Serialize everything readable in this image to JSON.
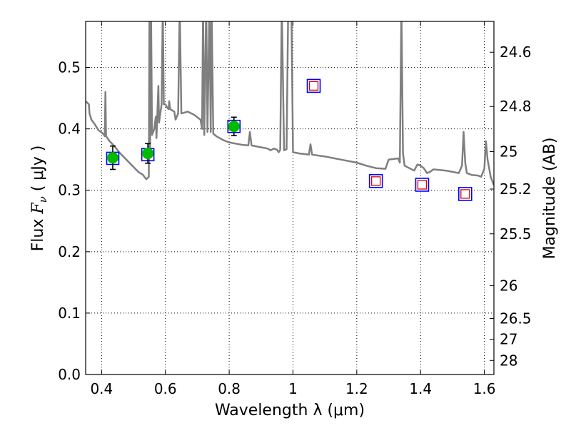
{
  "chart_data": {
    "type": "scatter",
    "xlabel": "Wavelength  λ (μm)",
    "ylabel_text": "Flux  ",
    "ylabel_math": "F",
    "ylabel_sub": "ν",
    "ylabel_units": " ( μJy )",
    "y2label": "Magnitude (AB)",
    "xlim": [
      0.35,
      1.63
    ],
    "ylim": [
      0.0,
      0.575
    ],
    "x_ticks": [
      0.4,
      0.6,
      0.8,
      1.0,
      1.2,
      1.4,
      1.6
    ],
    "x_tick_labels": [
      "0.4",
      "0.6",
      "0.8",
      "1",
      "1.2",
      "1.4",
      "1.6"
    ],
    "y_ticks": [
      0.0,
      0.1,
      0.2,
      0.3,
      0.4,
      0.5
    ],
    "y_tick_labels": [
      "0.0",
      "0.1",
      "0.2",
      "0.3",
      "0.4",
      "0.5"
    ],
    "y2_ticks": [
      {
        "label": "24.6",
        "mag": 24.6
      },
      {
        "label": "24.8",
        "mag": 24.8
      },
      {
        "label": "25",
        "mag": 25.0
      },
      {
        "label": "25.2",
        "mag": 25.2
      },
      {
        "label": "25.5",
        "mag": 25.5
      },
      {
        "label": "26",
        "mag": 26.0
      },
      {
        "label": "26.5",
        "mag": 26.5
      },
      {
        "label": "27",
        "mag": 27.0
      },
      {
        "label": "28",
        "mag": 28.0
      }
    ],
    "grid": true,
    "colors": {
      "sed": "#7f7f7f",
      "observed": "#00bb00",
      "model_box": "#0000ff",
      "upper_box": "#dd0000",
      "errorbar": "#000000"
    },
    "sed_model": [
      [
        0.35,
        0.445
      ],
      [
        0.36,
        0.44
      ],
      [
        0.362,
        0.425
      ],
      [
        0.368,
        0.415
      ],
      [
        0.378,
        0.408
      ],
      [
        0.39,
        0.398
      ],
      [
        0.405,
        0.392
      ],
      [
        0.41,
        0.388
      ],
      [
        0.412,
        0.46
      ],
      [
        0.414,
        0.388
      ],
      [
        0.425,
        0.38
      ],
      [
        0.44,
        0.372
      ],
      [
        0.455,
        0.362
      ],
      [
        0.47,
        0.354
      ],
      [
        0.485,
        0.346
      ],
      [
        0.5,
        0.338
      ],
      [
        0.515,
        0.33
      ],
      [
        0.53,
        0.325
      ],
      [
        0.54,
        0.318
      ],
      [
        0.548,
        0.322
      ],
      [
        0.55,
        0.6
      ],
      [
        0.552,
        0.37
      ],
      [
        0.555,
        0.6
      ],
      [
        0.558,
        0.39
      ],
      [
        0.565,
        0.4
      ],
      [
        0.57,
        0.42
      ],
      [
        0.572,
        0.385
      ],
      [
        0.578,
        0.47
      ],
      [
        0.58,
        0.41
      ],
      [
        0.588,
        0.44
      ],
      [
        0.592,
        0.6
      ],
      [
        0.595,
        0.44
      ],
      [
        0.6,
        0.44
      ],
      [
        0.605,
        0.435
      ],
      [
        0.61,
        0.432
      ],
      [
        0.612,
        0.445
      ],
      [
        0.615,
        0.432
      ],
      [
        0.628,
        0.428
      ],
      [
        0.632,
        0.415
      ],
      [
        0.64,
        0.425
      ],
      [
        0.645,
        0.6
      ],
      [
        0.65,
        0.425
      ],
      [
        0.67,
        0.428
      ],
      [
        0.69,
        0.423
      ],
      [
        0.71,
        0.415
      ],
      [
        0.715,
        0.4
      ],
      [
        0.718,
        0.6
      ],
      [
        0.722,
        0.39
      ],
      [
        0.728,
        0.6
      ],
      [
        0.732,
        0.395
      ],
      [
        0.738,
        0.6
      ],
      [
        0.742,
        0.395
      ],
      [
        0.745,
        0.6
      ],
      [
        0.75,
        0.392
      ],
      [
        0.76,
        0.388
      ],
      [
        0.77,
        0.385
      ],
      [
        0.78,
        0.382
      ],
      [
        0.79,
        0.38
      ],
      [
        0.8,
        0.378
      ],
      [
        0.82,
        0.376
      ],
      [
        0.84,
        0.374
      ],
      [
        0.86,
        0.373
      ],
      [
        0.865,
        0.395
      ],
      [
        0.87,
        0.373
      ],
      [
        0.9,
        0.37
      ],
      [
        0.92,
        0.368
      ],
      [
        0.93,
        0.365
      ],
      [
        0.94,
        0.368
      ],
      [
        0.95,
        0.366
      ],
      [
        0.955,
        0.362
      ],
      [
        0.96,
        0.366
      ],
      [
        0.965,
        0.6
      ],
      [
        0.972,
        0.365
      ],
      [
        0.98,
        0.367
      ],
      [
        0.985,
        0.6
      ],
      [
        0.995,
        0.6
      ],
      [
        1.0,
        0.362
      ],
      [
        1.02,
        0.36
      ],
      [
        1.05,
        0.358
      ],
      [
        1.055,
        0.375
      ],
      [
        1.06,
        0.358
      ],
      [
        1.1,
        0.355
      ],
      [
        1.15,
        0.35
      ],
      [
        1.2,
        0.345
      ],
      [
        1.23,
        0.34
      ],
      [
        1.26,
        0.336
      ],
      [
        1.29,
        0.335
      ],
      [
        1.3,
        0.35
      ],
      [
        1.33,
        0.352
      ],
      [
        1.335,
        0.345
      ],
      [
        1.34,
        0.6
      ],
      [
        1.345,
        0.36
      ],
      [
        1.35,
        0.34
      ],
      [
        1.38,
        0.332
      ],
      [
        1.39,
        0.342
      ],
      [
        1.4,
        0.34
      ],
      [
        1.41,
        0.336
      ],
      [
        1.42,
        0.328
      ],
      [
        1.43,
        0.33
      ],
      [
        1.44,
        0.334
      ],
      [
        1.46,
        0.333
      ],
      [
        1.48,
        0.332
      ],
      [
        1.5,
        0.33
      ],
      [
        1.52,
        0.328
      ],
      [
        1.53,
        0.34
      ],
      [
        1.535,
        0.395
      ],
      [
        1.54,
        0.345
      ],
      [
        1.545,
        0.328
      ],
      [
        1.56,
        0.325
      ],
      [
        1.58,
        0.324
      ],
      [
        1.59,
        0.322
      ],
      [
        1.6,
        0.335
      ],
      [
        1.605,
        0.38
      ],
      [
        1.61,
        0.35
      ],
      [
        1.62,
        0.322
      ],
      [
        1.63,
        0.308
      ]
    ],
    "observed_points": [
      {
        "x": 0.435,
        "y": 0.353,
        "yerr": 0.019
      },
      {
        "x": 0.545,
        "y": 0.36,
        "yerr": 0.016
      },
      {
        "x": 0.815,
        "y": 0.404,
        "yerr": 0.015
      }
    ],
    "model_band_points": [
      {
        "x": 0.435,
        "y": 0.352
      },
      {
        "x": 0.545,
        "y": 0.358
      },
      {
        "x": 0.815,
        "y": 0.404
      }
    ],
    "upper_points": [
      {
        "x": 1.065,
        "y": 0.47
      },
      {
        "x": 1.26,
        "y": 0.315
      },
      {
        "x": 1.405,
        "y": 0.309
      },
      {
        "x": 1.54,
        "y": 0.294
      }
    ]
  }
}
